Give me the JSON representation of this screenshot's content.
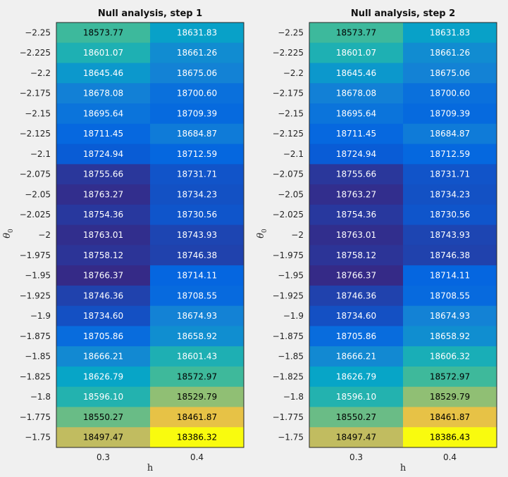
{
  "chart_data": [
    {
      "type": "heatmap",
      "title": "Null analysis, step 1",
      "xlabel": "h",
      "ylabel": "θ0",
      "x_categories": [
        "0.3",
        "0.4"
      ],
      "y_categories": [
        "-2.25",
        "-2.225",
        "-2.2",
        "-2.175",
        "-2.15",
        "-2.125",
        "-2.1",
        "-2.075",
        "-2.05",
        "-2.025",
        "-2",
        "-1.975",
        "-1.95",
        "-1.925",
        "-1.9",
        "-1.875",
        "-1.85",
        "-1.825",
        "-1.8",
        "-1.775",
        "-1.75"
      ],
      "values": [
        [
          18573.77,
          18631.83
        ],
        [
          18601.07,
          18661.26
        ],
        [
          18645.46,
          18675.06
        ],
        [
          18678.08,
          18700.6
        ],
        [
          18695.64,
          18709.39
        ],
        [
          18711.45,
          18684.87
        ],
        [
          18724.94,
          18712.59
        ],
        [
          18755.66,
          18731.71
        ],
        [
          18763.27,
          18734.23
        ],
        [
          18754.36,
          18730.56
        ],
        [
          18763.01,
          18743.93
        ],
        [
          18758.12,
          18746.38
        ],
        [
          18766.37,
          18714.11
        ],
        [
          18746.36,
          18708.55
        ],
        [
          18734.6,
          18674.93
        ],
        [
          18705.86,
          18658.92
        ],
        [
          18666.21,
          18601.43
        ],
        [
          18626.79,
          18572.97
        ],
        [
          18596.1,
          18529.79
        ],
        [
          18550.27,
          18461.87
        ],
        [
          18497.47,
          18386.32
        ]
      ],
      "value_labels": [
        [
          "18573.77",
          "18631.83"
        ],
        [
          "18601.07",
          "18661.26"
        ],
        [
          "18645.46",
          "18675.06"
        ],
        [
          "18678.08",
          "18700.60"
        ],
        [
          "18695.64",
          "18709.39"
        ],
        [
          "18711.45",
          "18684.87"
        ],
        [
          "18724.94",
          "18712.59"
        ],
        [
          "18755.66",
          "18731.71"
        ],
        [
          "18763.27",
          "18734.23"
        ],
        [
          "18754.36",
          "18730.56"
        ],
        [
          "18763.01",
          "18743.93"
        ],
        [
          "18758.12",
          "18746.38"
        ],
        [
          "18766.37",
          "18714.11"
        ],
        [
          "18746.36",
          "18708.55"
        ],
        [
          "18734.60",
          "18674.93"
        ],
        [
          "18705.86",
          "18658.92"
        ],
        [
          "18666.21",
          "18601.43"
        ],
        [
          "18626.79",
          "18572.97"
        ],
        [
          "18596.10",
          "18529.79"
        ],
        [
          "18550.27",
          "18461.87"
        ],
        [
          "18497.47",
          "18386.32"
        ]
      ],
      "colormap": "parula",
      "grid": false
    },
    {
      "type": "heatmap",
      "title": "Null analysis, step 2",
      "xlabel": "h",
      "ylabel": "θ0",
      "x_categories": [
        "0.3",
        "0.4"
      ],
      "y_categories": [
        "-2.25",
        "-2.225",
        "-2.2",
        "-2.175",
        "-2.15",
        "-2.125",
        "-2.1",
        "-2.075",
        "-2.05",
        "-2.025",
        "-2",
        "-1.975",
        "-1.95",
        "-1.925",
        "-1.9",
        "-1.875",
        "-1.85",
        "-1.825",
        "-1.8",
        "-1.775",
        "-1.75"
      ],
      "values": [
        [
          18573.77,
          18631.83
        ],
        [
          18601.07,
          18661.26
        ],
        [
          18645.46,
          18675.06
        ],
        [
          18678.08,
          18700.6
        ],
        [
          18695.64,
          18709.39
        ],
        [
          18711.45,
          18684.87
        ],
        [
          18724.94,
          18712.59
        ],
        [
          18755.66,
          18731.71
        ],
        [
          18763.27,
          18734.23
        ],
        [
          18754.36,
          18730.56
        ],
        [
          18763.01,
          18743.93
        ],
        [
          18758.12,
          18746.38
        ],
        [
          18766.37,
          18714.11
        ],
        [
          18746.36,
          18708.55
        ],
        [
          18734.6,
          18674.93
        ],
        [
          18705.86,
          18658.92
        ],
        [
          18666.21,
          18606.32
        ],
        [
          18626.79,
          18572.97
        ],
        [
          18596.1,
          18529.79
        ],
        [
          18550.27,
          18461.87
        ],
        [
          18497.47,
          18386.43
        ]
      ],
      "value_labels": [
        [
          "18573.77",
          "18631.83"
        ],
        [
          "18601.07",
          "18661.26"
        ],
        [
          "18645.46",
          "18675.06"
        ],
        [
          "18678.08",
          "18700.60"
        ],
        [
          "18695.64",
          "18709.39"
        ],
        [
          "18711.45",
          "18684.87"
        ],
        [
          "18724.94",
          "18712.59"
        ],
        [
          "18755.66",
          "18731.71"
        ],
        [
          "18763.27",
          "18734.23"
        ],
        [
          "18754.36",
          "18730.56"
        ],
        [
          "18763.01",
          "18743.93"
        ],
        [
          "18758.12",
          "18746.38"
        ],
        [
          "18766.37",
          "18714.11"
        ],
        [
          "18746.36",
          "18708.55"
        ],
        [
          "18734.60",
          "18674.93"
        ],
        [
          "18705.86",
          "18658.92"
        ],
        [
          "18666.21",
          "18606.32"
        ],
        [
          "18626.79",
          "18572.97"
        ],
        [
          "18596.10",
          "18529.79"
        ],
        [
          "18550.27",
          "18461.87"
        ],
        [
          "18497.47",
          "18386.43"
        ]
      ],
      "colormap": "parula",
      "grid": false
    }
  ],
  "colors": {
    "background": "#f0f0f0",
    "parula_stops": [
      "#352a87",
      "#0363e1",
      "#1485d4",
      "#06a7c6",
      "#38b99e",
      "#92bf73",
      "#d9ba56",
      "#fcce2e",
      "#f9fb0e"
    ]
  }
}
